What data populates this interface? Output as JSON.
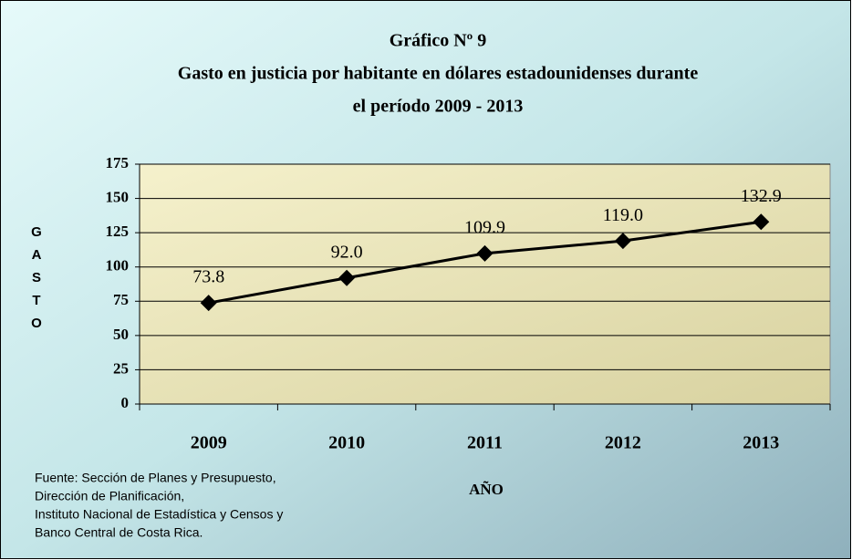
{
  "chart_data": {
    "type": "line",
    "title": [
      "Gráfico Nº 9",
      "Gasto en justicia por habitante  en dólares estadounidenses durante",
      "el período 2009 - 2013"
    ],
    "y_label": "GASTO",
    "x_label": "AÑO",
    "source": [
      "Fuente: Sección de Planes y Presupuesto,",
      "Dirección de Planificación,",
      "Instituto Nacional de Estadística y Censos y",
      "Banco Central de Costa Rica."
    ],
    "categories": [
      "2009",
      "2010",
      "2011",
      "2012",
      "2013"
    ],
    "series": [
      {
        "name": "Gasto",
        "color": "#000000",
        "values": [
          73.8,
          92.0,
          109.9,
          119.0,
          132.9
        ],
        "value_labels": [
          "73.8",
          "92.0",
          "109.9",
          "119.0",
          "132.9"
        ]
      }
    ],
    "ylim": [
      0,
      175
    ],
    "yticks": [
      0,
      25,
      50,
      75,
      100,
      125,
      150,
      175
    ],
    "grid": true
  }
}
